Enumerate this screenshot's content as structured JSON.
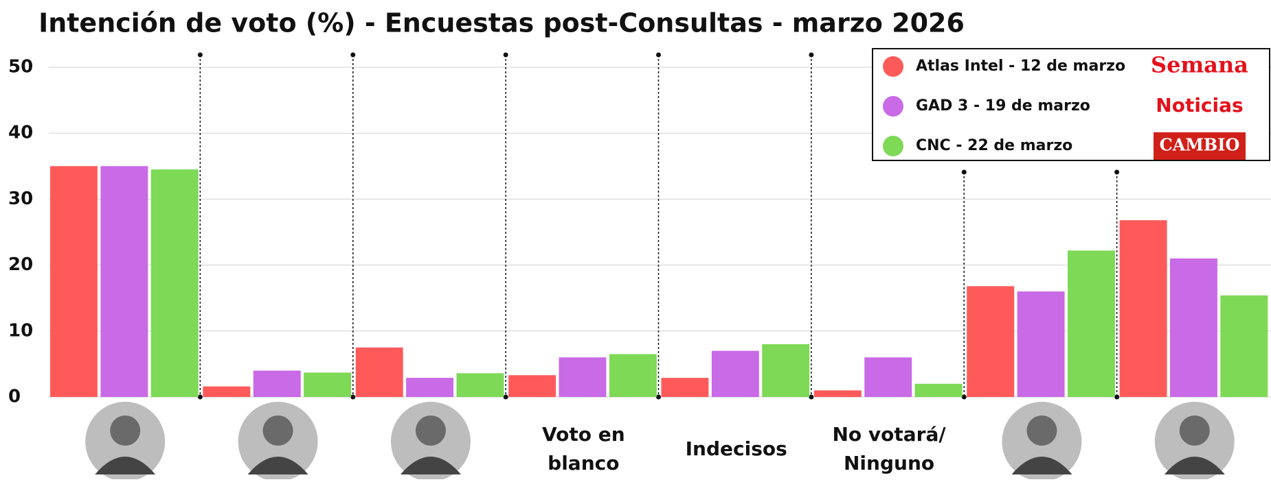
{
  "chart_data": {
    "type": "bar",
    "title": "Intención de voto (%) - Encuestas post-Consultas - marzo 2026",
    "categories": [
      null,
      null,
      null,
      "Voto en blanco",
      "Indecisos",
      "No votará/ Ninguno",
      null,
      null
    ],
    "series": [
      {
        "name": "Atlas Intel - 12 de marzo",
        "color": "#ff5a5a",
        "values": [
          35.0,
          1.6,
          7.5,
          3.3,
          2.9,
          1.0,
          16.8,
          26.8
        ]
      },
      {
        "name": "GAD 3 - 19 de marzo",
        "color": "#c96ae6",
        "values": [
          35.0,
          4.0,
          2.9,
          6.0,
          7.0,
          6.0,
          16.0,
          21.0
        ]
      },
      {
        "name": "CNC - 22 de marzo",
        "color": "#7dd956",
        "values": [
          34.5,
          3.7,
          3.6,
          6.5,
          8.0,
          2.0,
          22.2,
          15.4
        ]
      }
    ],
    "legend_sources": [
      "Semana",
      "Noticias",
      "CAMBIO"
    ],
    "ylim": [
      0,
      52
    ],
    "yticks": [
      0,
      10,
      20,
      30,
      40,
      50
    ],
    "grid": true,
    "legend": "upper right"
  }
}
